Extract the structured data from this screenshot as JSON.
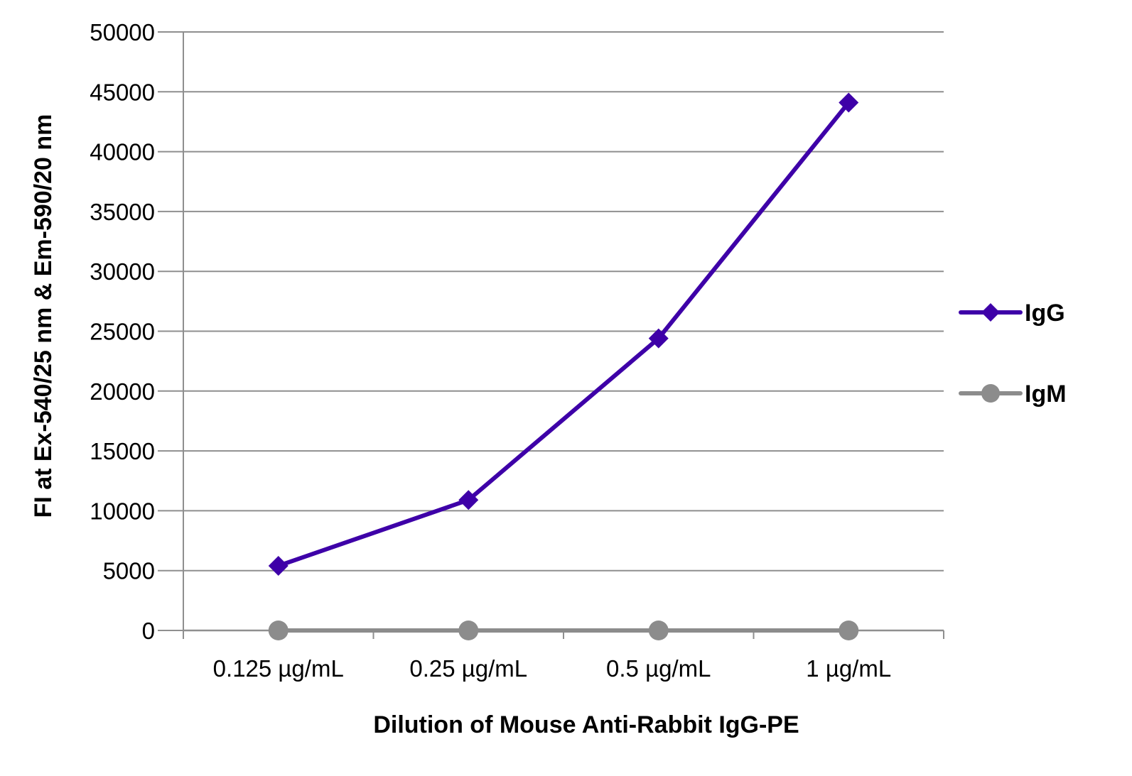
{
  "chart_data": {
    "type": "line",
    "title": "",
    "xlabel": "Dilution of Mouse Anti-Rabbit IgG-PE",
    "ylabel": "FI at Ex-540/25 nm & Em-590/20 nm",
    "categories": [
      "0.125 µg/mL",
      "0.25 µg/mL",
      "0.5 µg/mL",
      "1 µg/mL"
    ],
    "ylim": [
      0,
      50000
    ],
    "yticks": [
      0,
      5000,
      10000,
      15000,
      20000,
      25000,
      30000,
      35000,
      40000,
      45000,
      50000
    ],
    "grid": true,
    "legend_position": "right",
    "series": [
      {
        "name": "IgG",
        "values": [
          5400,
          10900,
          24400,
          44100
        ],
        "color": "#3e00a8",
        "marker": "diamond"
      },
      {
        "name": "IgM",
        "values": [
          0,
          0,
          0,
          0
        ],
        "color": "#8c8c8c",
        "marker": "circle"
      }
    ]
  }
}
